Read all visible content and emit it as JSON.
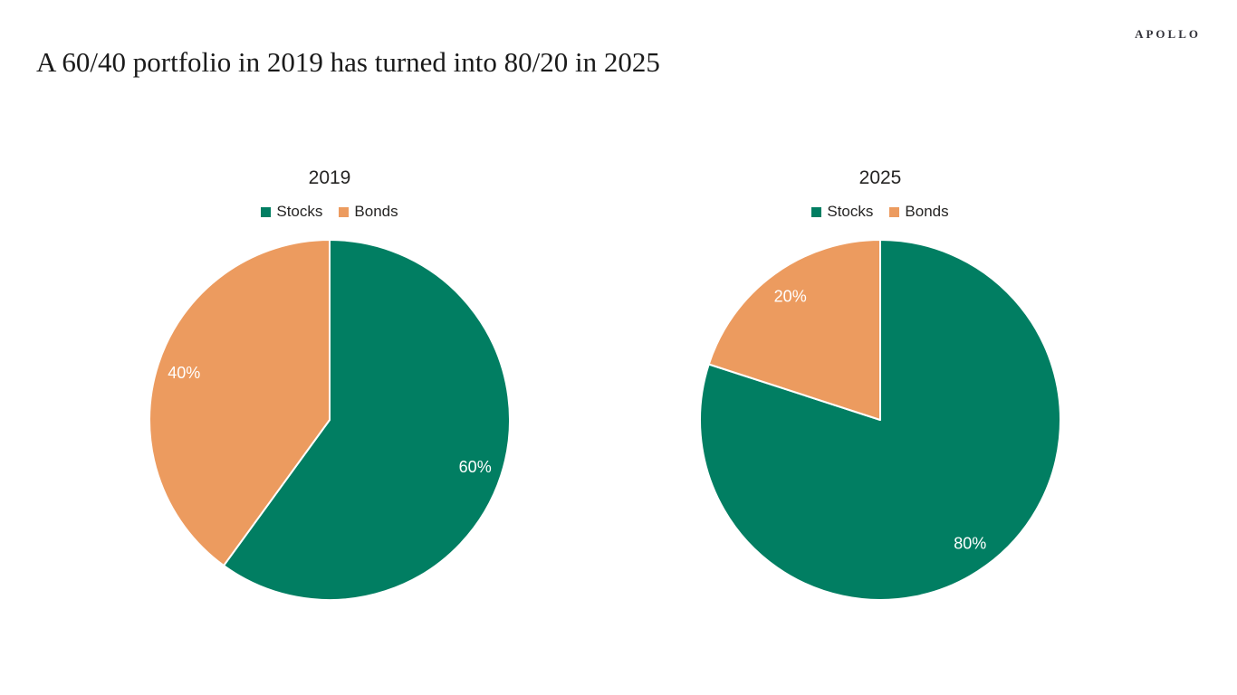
{
  "page": {
    "brand": "APOLLO",
    "title": "A 60/40 portfolio in 2019 has turned into 80/20 in 2025",
    "background": "#FFFFFF"
  },
  "colors": {
    "stocks_green": "#017E62",
    "bonds_orange": "#EC9B5F",
    "data_label_white": "#FFFFFF",
    "chart_text": "#252423",
    "title_text": "#1A1A1A",
    "brand_text": "#33333B",
    "slice_divider": "#FFFFFF"
  },
  "chart_data": [
    {
      "type": "pie",
      "title": "2019",
      "legend_position": "top",
      "legend_entries": [
        "Stocks",
        "Bonds"
      ],
      "start_angle_deg": 0,
      "direction": "clockwise",
      "slices": [
        {
          "label": "Stocks",
          "value": 60,
          "pct_label": "60%",
          "color": "#017E62"
        },
        {
          "label": "Bonds",
          "value": 40,
          "pct_label": "40%",
          "color": "#EC9B5F"
        }
      ]
    },
    {
      "type": "pie",
      "title": "2025",
      "legend_position": "top",
      "legend_entries": [
        "Stocks",
        "Bonds"
      ],
      "start_angle_deg": 0,
      "direction": "clockwise",
      "slices": [
        {
          "label": "Stocks",
          "value": 80,
          "pct_label": "80%",
          "color": "#017E62"
        },
        {
          "label": "Bonds",
          "value": 20,
          "pct_label": "20%",
          "color": "#EC9B5F"
        }
      ]
    }
  ]
}
